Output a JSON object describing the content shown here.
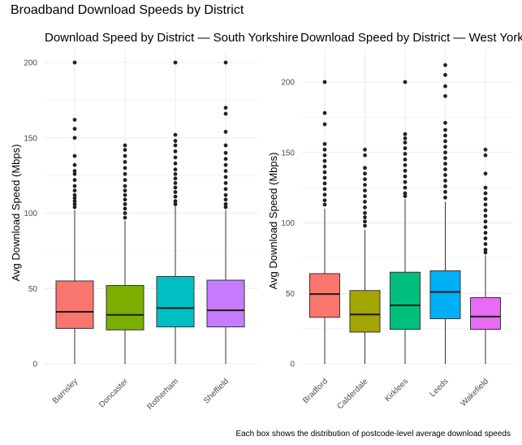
{
  "title": "Broadband Download Speeds by District",
  "caption": "Each box shows the distribution of postcode-level average download speeds",
  "chart_data": [
    {
      "type": "box",
      "title": "Download Speed by District — South Yorkshire",
      "xlabel": "",
      "ylabel": "Avg Download Speed (Mbps)",
      "ylim": [
        0,
        205
      ],
      "yticks": [
        0,
        50,
        100,
        150,
        200
      ],
      "grid": true,
      "legend": "none",
      "categories": [
        "Barnsley",
        "Doncaster",
        "Rotherham",
        "Sheffield"
      ],
      "colors": [
        "#F8766D",
        "#7CAE00",
        "#00BFC4",
        "#C77CFF"
      ],
      "boxes": [
        {
          "min": 0,
          "q1": 23.5,
          "median": 34.5,
          "q3": 55,
          "whisker_high": 102,
          "outliers": [
            200,
            162,
            156,
            150,
            138,
            132,
            128,
            126,
            122,
            118,
            115,
            112,
            110,
            108,
            106,
            104
          ]
        },
        {
          "min": 0,
          "q1": 22.5,
          "median": 32.5,
          "q3": 52,
          "whisker_high": 95,
          "outliers": [
            145,
            142,
            138,
            134,
            130,
            126,
            122,
            118,
            115,
            112,
            109,
            106,
            103,
            100,
            97
          ]
        },
        {
          "min": 0,
          "q1": 24.5,
          "median": 37,
          "q3": 58,
          "whisker_high": 105,
          "outliers": [
            200,
            152,
            148,
            145,
            141,
            137,
            133,
            129,
            126,
            123,
            120,
            117,
            114,
            111,
            108,
            106
          ]
        },
        {
          "min": 0,
          "q1": 24.5,
          "median": 35.5,
          "q3": 55.5,
          "whisker_high": 102,
          "outliers": [
            200,
            170,
            166,
            154,
            145,
            140,
            136,
            132,
            128,
            124,
            120,
            116,
            112,
            109,
            106,
            104
          ]
        }
      ]
    },
    {
      "type": "box",
      "title": "Download Speed by District — West Yorkshire",
      "xlabel": "",
      "ylabel": "Avg Download Speed (Mbps)",
      "ylim": [
        0,
        215
      ],
      "yticks": [
        0,
        50,
        100,
        150,
        200
      ],
      "grid": true,
      "legend": "none",
      "categories": [
        "Bradford",
        "Calderdale",
        "Kirklees",
        "Leeds",
        "Wakefield"
      ],
      "colors": [
        "#F8766D",
        "#A3A500",
        "#00BF7D",
        "#00B0F6",
        "#E76BF3"
      ],
      "boxes": [
        {
          "min": 0,
          "q1": 33,
          "median": 49.5,
          "q3": 64,
          "whisker_high": 110,
          "outliers": [
            200,
            178,
            170,
            156,
            152,
            148,
            144,
            140,
            136,
            132,
            128,
            124,
            120,
            116,
            113
          ]
        },
        {
          "min": 0,
          "q1": 22.5,
          "median": 35,
          "q3": 52,
          "whisker_high": 95,
          "outliers": [
            152,
            148,
            139,
            135,
            131,
            127,
            123,
            119,
            115,
            111,
            107,
            104,
            101,
            98
          ]
        },
        {
          "min": 0,
          "q1": 24.5,
          "median": 41.5,
          "q3": 65,
          "whisker_high": 117,
          "outliers": [
            200,
            163,
            160,
            157,
            153,
            149,
            145,
            141,
            137,
            133,
            129,
            125,
            121,
            119
          ]
        },
        {
          "min": 0,
          "q1": 32,
          "median": 51,
          "q3": 66,
          "whisker_high": 115,
          "outliers": [
            212,
            205,
            197,
            190,
            171,
            166,
            162,
            158,
            154,
            150,
            146,
            142,
            138,
            134,
            130,
            126,
            122,
            118
          ]
        },
        {
          "min": 0,
          "q1": 24.5,
          "median": 33.5,
          "q3": 47,
          "whisker_high": 77,
          "outliers": [
            152,
            148,
            135,
            125,
            121,
            117,
            113,
            109,
            105,
            101,
            97,
            93,
            89,
            85,
            81,
            79
          ]
        }
      ]
    }
  ]
}
